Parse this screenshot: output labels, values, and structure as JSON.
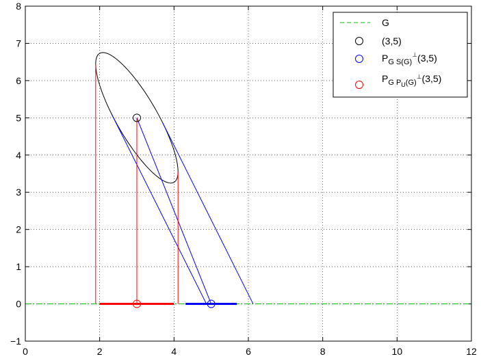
{
  "chart_data": {
    "type": "line",
    "title": "",
    "xlabel": "",
    "ylabel": "",
    "xlim": [
      0,
      12
    ],
    "ylim": [
      -1,
      8
    ],
    "x_ticks": [
      "0",
      "2",
      "4",
      "6",
      "8",
      "10",
      "12"
    ],
    "y_ticks": [
      "−1",
      "0",
      "1",
      "2",
      "3",
      "4",
      "5",
      "6",
      "7",
      "8"
    ],
    "grid": true,
    "legend_position": "top-right",
    "point": [
      3,
      5
    ],
    "ellipse": {
      "center": [
        3,
        5
      ],
      "semi_axes": [
        2.0,
        0.55
      ],
      "angle_deg": -60
    },
    "oblique_projection": {
      "direction": [
        1,
        -2
      ],
      "hits": [
        [
          4.31,
          0
        ],
        [
          5.69,
          0
        ]
      ],
      "point_hit": [
        5,
        0
      ]
    },
    "orthogonal_projection": {
      "interval": [
        2,
        4
      ],
      "point_hit": [
        3,
        0
      ]
    },
    "series": [
      {
        "name": "G",
        "style": "dashdot",
        "color": "#00c000",
        "points": [
          [
            0,
            0
          ],
          [
            12,
            0
          ]
        ]
      },
      {
        "name": "(3,5)",
        "marker": "circle",
        "color": "#000000",
        "points": [
          [
            3,
            5
          ]
        ]
      },
      {
        "name": "P_{G S(G)^⊥}(3,5)",
        "marker": "circle",
        "color": "#0000ff",
        "points": [
          [
            5,
            0
          ]
        ]
      },
      {
        "name": "P_{G P_U(G)^⊥}(3,5)",
        "marker": "circle",
        "color": "#ff0000",
        "points": [
          [
            3,
            0
          ]
        ]
      }
    ]
  },
  "legend": {
    "g_label": "G",
    "point_label": "(3,5)",
    "blue_main": "P",
    "blue_sub": "G S(G)",
    "blue_sup": "⊥",
    "blue_tail": "(3,5)",
    "red_main": "P",
    "red_sub": "G P",
    "red_subsub": "U",
    "red_sub2": "(G)",
    "red_sup": "⊥",
    "red_tail": "(3,5)"
  }
}
